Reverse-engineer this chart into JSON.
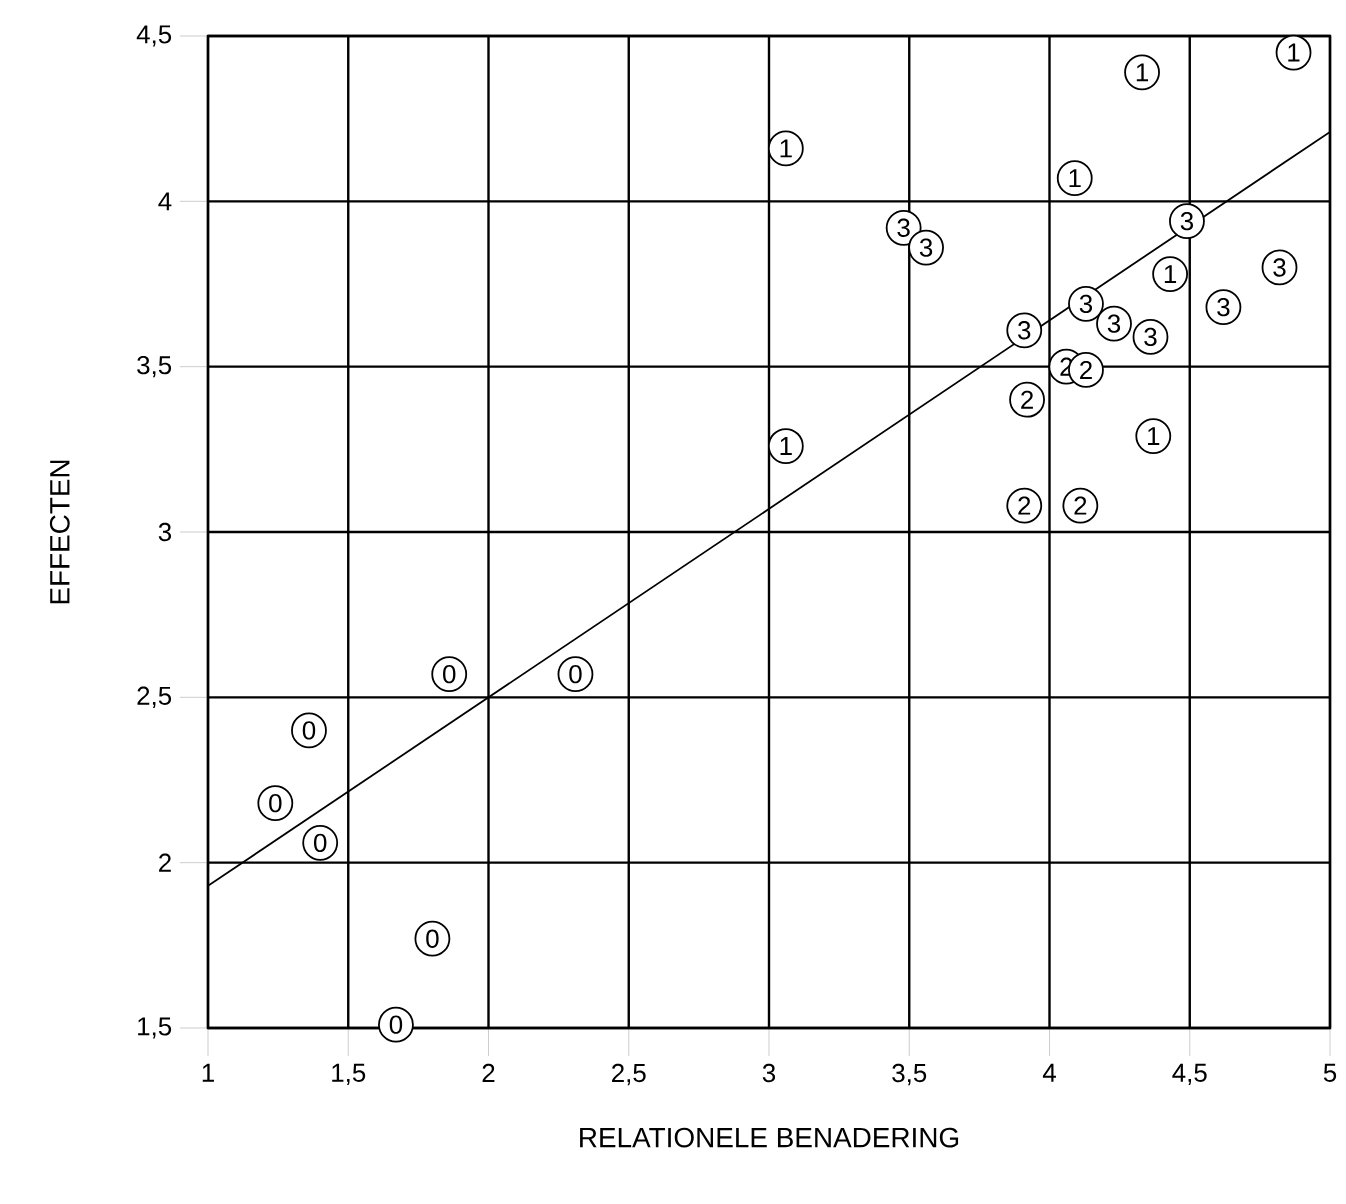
{
  "chart_data": {
    "type": "scatter",
    "xlabel": "RELATIONELE BENADERING",
    "ylabel": "EFFECTEN",
    "xlim": [
      1,
      5
    ],
    "ylim": [
      1.5,
      4.5
    ],
    "xticks": [
      1,
      {
        "value": 1.5,
        "label": "1,5"
      },
      2,
      {
        "value": 2.5,
        "label": "2,5"
      },
      3,
      {
        "value": 3.5,
        "label": "3,5"
      },
      4,
      {
        "value": 4.5,
        "label": "4,5"
      },
      5
    ],
    "yticks": [
      {
        "value": 1.5,
        "label": "1,5"
      },
      2,
      {
        "value": 2.5,
        "label": "2,5"
      },
      3,
      {
        "value": 3.5,
        "label": "3,5"
      },
      4,
      {
        "value": 4.5,
        "label": "4,5"
      }
    ],
    "grid": true,
    "marker": "circle",
    "series": [
      {
        "name": "0",
        "color": "#000000",
        "x": [
          1.36,
          1.24,
          1.4,
          1.86,
          2.31,
          1.8,
          1.67
        ],
        "values": [
          2.4,
          2.18,
          2.06,
          2.57,
          2.57,
          1.77,
          1.51
        ]
      },
      {
        "name": "1",
        "color": "#000000",
        "x": [
          4.87,
          4.33,
          3.06,
          4.09,
          4.43,
          3.06,
          4.37
        ],
        "values": [
          4.45,
          4.39,
          4.16,
          4.07,
          3.78,
          3.26,
          3.29
        ]
      },
      {
        "name": "2",
        "color": "#000000",
        "x": [
          4.06,
          4.13,
          3.92,
          3.91,
          4.11
        ],
        "values": [
          3.5,
          3.49,
          3.4,
          3.08,
          3.08
        ]
      },
      {
        "name": "3",
        "color": "#000000",
        "x": [
          3.48,
          3.56,
          4.49,
          4.13,
          3.91,
          4.23,
          4.36,
          4.62,
          4.82
        ],
        "values": [
          3.92,
          3.86,
          3.94,
          3.69,
          3.61,
          3.63,
          3.59,
          3.68,
          3.8
        ]
      },
      {
        "type": "line",
        "marker": "none",
        "color": "#000000",
        "x": [
          1,
          5
        ],
        "values": [
          1.93,
          4.21
        ]
      }
    ]
  }
}
